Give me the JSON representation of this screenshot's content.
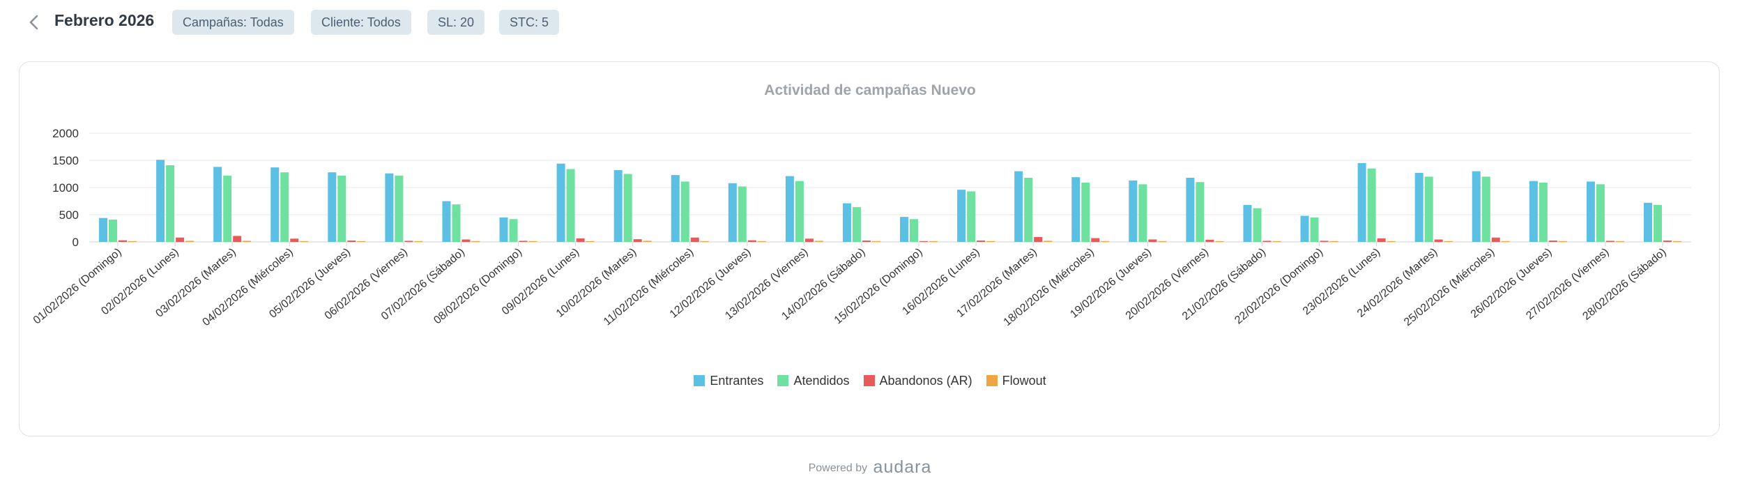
{
  "header": {
    "title": "Febrero 2026",
    "back_icon": "chevron-left-icon",
    "filters": [
      {
        "label": "Campañas: Todas"
      },
      {
        "label": "Cliente: Todos"
      },
      {
        "label": "SL:  20"
      },
      {
        "label": "STC:  5"
      }
    ]
  },
  "footer": {
    "powered_by": "Powered by",
    "brand": "audara"
  },
  "chart_data": {
    "type": "bar",
    "title": "Actividad de campañas Nuevo",
    "xlabel": "",
    "ylabel": "",
    "ylim": [
      0,
      2000
    ],
    "yticks": [
      0,
      500,
      1000,
      1500,
      2000
    ],
    "yticklabels": [
      "0",
      "500",
      "1000",
      "1500",
      "2000"
    ],
    "grid": true,
    "legend_position": "bottom",
    "categories": [
      "01/02/2026 (Domingo)",
      "02/02/2026 (Lunes)",
      "03/02/2026 (Martes)",
      "04/02/2026 (Miércoles)",
      "05/02/2026 (Jueves)",
      "06/02/2026 (Viernes)",
      "07/02/2026 (Sábado)",
      "08/02/2026 (Domingo)",
      "09/02/2026 (Lunes)",
      "10/02/2026 (Martes)",
      "11/02/2026 (Miércoles)",
      "12/02/2026 (Jueves)",
      "13/02/2026 (Viernes)",
      "14/02/2026 (Sábado)",
      "15/02/2026 (Domingo)",
      "16/02/2026 (Lunes)",
      "17/02/2026 (Martes)",
      "18/02/2026 (Miércoles)",
      "19/02/2026 (Jueves)",
      "20/02/2026 (Viernes)",
      "21/02/2026 (Sábado)",
      "22/02/2026 (Domingo)",
      "23/02/2026 (Lunes)",
      "24/02/2026 (Martes)",
      "25/02/2026 (Miércoles)",
      "26/02/2026 (Jueves)",
      "27/02/2026 (Viernes)",
      "28/02/2026 (Sábado)"
    ],
    "series": [
      {
        "name": "Entrantes",
        "color": "#5bc0e3",
        "values": [
          440,
          1510,
          1380,
          1370,
          1280,
          1260,
          750,
          450,
          1440,
          1320,
          1230,
          1080,
          1210,
          710,
          460,
          960,
          1300,
          1190,
          1130,
          1180,
          680,
          480,
          1450,
          1270,
          1300,
          1120,
          1110,
          720
        ]
      },
      {
        "name": "Atendidos",
        "color": "#6ee0a0",
        "values": [
          410,
          1410,
          1220,
          1280,
          1220,
          1220,
          690,
          420,
          1340,
          1250,
          1110,
          1020,
          1120,
          640,
          420,
          930,
          1180,
          1090,
          1060,
          1100,
          620,
          450,
          1350,
          1200,
          1200,
          1090,
          1060,
          680
        ]
      },
      {
        "name": "Abandonos (AR)",
        "color": "#e65a5a",
        "values": [
          30,
          80,
          110,
          60,
          25,
          20,
          45,
          20,
          65,
          50,
          80,
          30,
          60,
          25,
          15,
          25,
          90,
          70,
          45,
          40,
          20,
          20,
          65,
          45,
          80,
          25,
          20,
          25
        ]
      },
      {
        "name": "Flowout",
        "color": "#f0a545",
        "values": [
          15,
          20,
          20,
          15,
          15,
          15,
          15,
          15,
          15,
          20,
          15,
          15,
          20,
          15,
          15,
          15,
          20,
          15,
          15,
          15,
          15,
          15,
          15,
          15,
          15,
          15,
          15,
          15
        ]
      }
    ]
  }
}
